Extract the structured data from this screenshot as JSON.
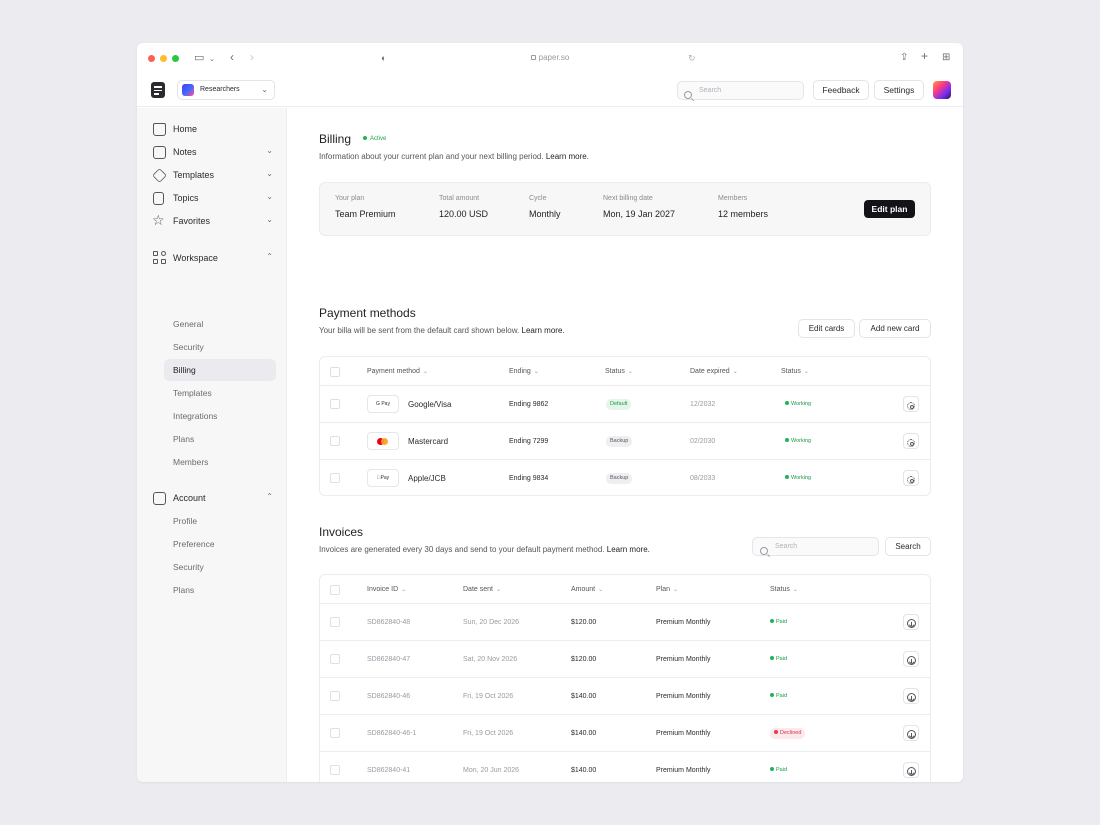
{
  "browser": {
    "url": "paper.so"
  },
  "header": {
    "workspace": "Researchers",
    "search_placeholder": "Search",
    "feedback": "Feedback",
    "settings": "Settings"
  },
  "sidebar": {
    "main": [
      {
        "label": "Home",
        "icon": "home-icon"
      },
      {
        "label": "Notes",
        "icon": "notes-icon"
      },
      {
        "label": "Templates",
        "icon": "layers-icon"
      },
      {
        "label": "Topics",
        "icon": "topics-icon"
      },
      {
        "label": "Favorites",
        "icon": "star-icon"
      }
    ],
    "workspace": {
      "label": "Workspace",
      "items": [
        "General",
        "Security",
        "Billing",
        "Templates",
        "Integrations",
        "Plans",
        "Members"
      ]
    },
    "account": {
      "label": "Account",
      "items": [
        "Profile",
        "Preference",
        "Security",
        "Plans"
      ]
    }
  },
  "billing": {
    "title": "Billing",
    "status": "Active",
    "desc": "Information about your current plan and your next billing period.",
    "learn_more": "Learn more.",
    "plan": {
      "your_plan_label": "Your plan",
      "your_plan": "Team Premium",
      "total_label": "Total amount",
      "total": "120.00 USD",
      "cycle_label": "Cycle",
      "cycle": "Monthly",
      "next_label": "Next billing date",
      "next": "Mon, 19 Jan 2027",
      "members_label": "Members",
      "members": "12 members",
      "edit": "Edit plan"
    }
  },
  "payments": {
    "title": "Payment methods",
    "desc": "Your billa will be sent from the default card shown below.",
    "learn_more": "Learn more.",
    "edit_cards": "Edit cards",
    "add_card": "Add new card",
    "headers": [
      "Payment method",
      "Ending",
      "Status",
      "Date expired",
      "Status"
    ],
    "rows": [
      {
        "logo": "G Pay",
        "method": "Google/Visa",
        "ending": "Ending 9862",
        "badge": "Default",
        "expired": "12/2032",
        "status": "Working"
      },
      {
        "logo": "",
        "method": "Mastercard",
        "ending": "Ending 7299",
        "badge": "Backup",
        "expired": "02/2030",
        "status": "Working"
      },
      {
        "logo": "Pay",
        "method": "Apple/JCB",
        "ending": "Ending 9834",
        "badge": "Backup",
        "expired": "08/2033",
        "status": "Working"
      }
    ]
  },
  "invoices": {
    "title": "Invoices",
    "desc": "Invoices are generated every 30 days and send to your default payment method.",
    "learn_more": "Learn more.",
    "search_placeholder": "Search",
    "search_button": "Search",
    "headers": [
      "Invoice ID",
      "Date sent",
      "Amount",
      "Plan",
      "Status"
    ],
    "rows": [
      {
        "id": "SD862840-48",
        "date": "Sun, 20 Dec 2026",
        "amount": "$120.00",
        "plan": "Premium Monthly",
        "status": "Paid"
      },
      {
        "id": "SD862840-47",
        "date": "Sat, 20 Nov 2026",
        "amount": "$120.00",
        "plan": "Premium Monthly",
        "status": "Paid"
      },
      {
        "id": "SD862840-46",
        "date": "Fri, 19 Oct 2026",
        "amount": "$140.00",
        "plan": "Premium Monthly",
        "status": "Paid"
      },
      {
        "id": "SD862840-46-1",
        "date": "Fri, 19 Oct 2026",
        "amount": "$140.00",
        "plan": "Premium Monthly",
        "status": "Declined"
      },
      {
        "id": "SD862840-41",
        "date": "Mon, 20 Jun 2026",
        "amount": "$140.00",
        "plan": "Premium Monthly",
        "status": "Paid"
      }
    ]
  },
  "colors": {
    "accent_green": "#22b357",
    "declined_red": "#e23c58",
    "primary_button": "#141418"
  }
}
